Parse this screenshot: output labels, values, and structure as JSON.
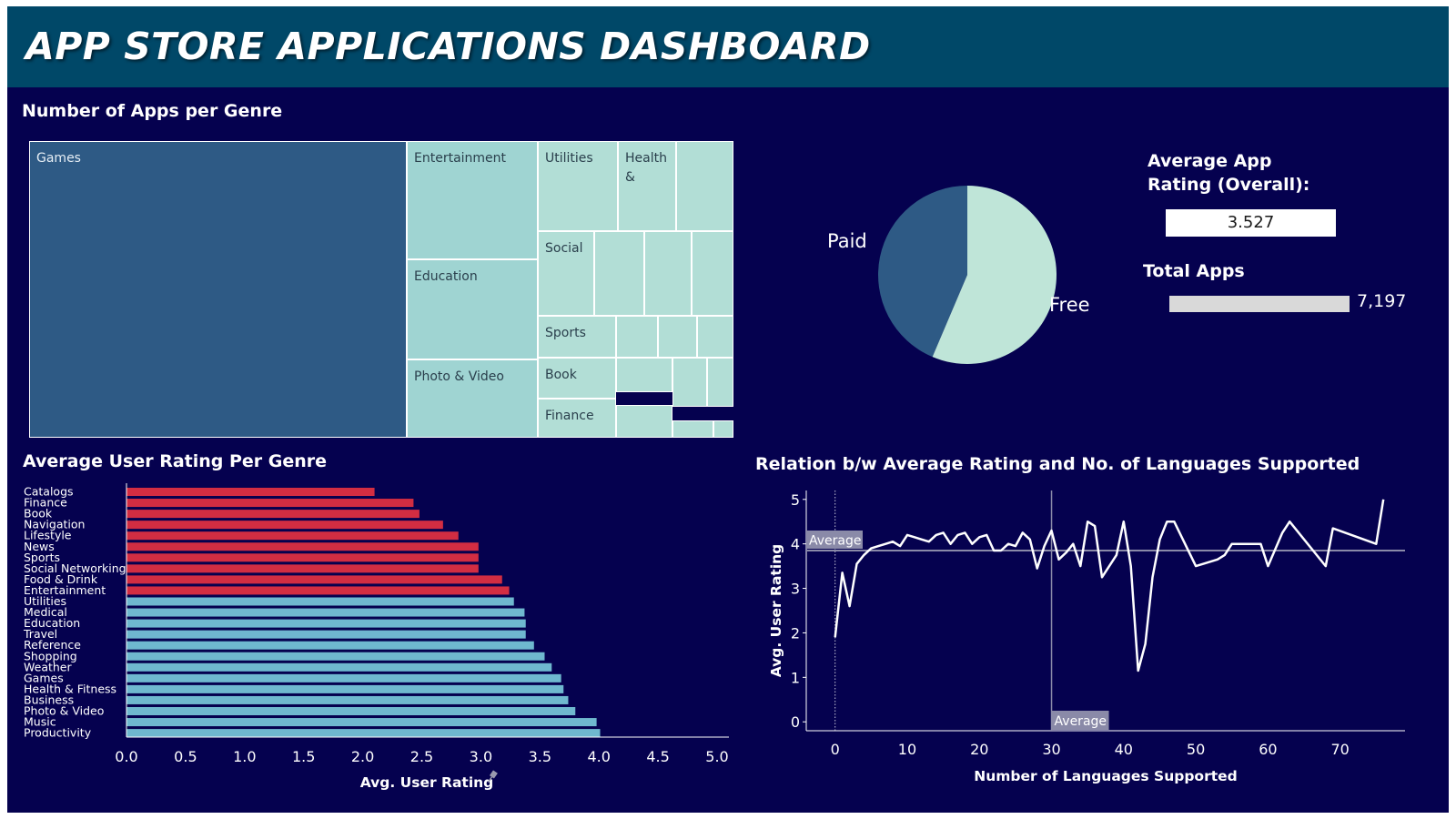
{
  "header": {
    "title": "APP STORE APPLICATIONS DASHBOARD"
  },
  "treemap": {
    "title": "Number of Apps per Genre",
    "color_large": "#2e5a85",
    "color_mid": "#9fd4d2",
    "color_small": "#b2ded6",
    "cells": [
      {
        "label": "Games",
        "color": "large"
      },
      {
        "label": "Entertainment",
        "color": "mid"
      },
      {
        "label": "Education",
        "color": "mid"
      },
      {
        "label": "Photo & Video",
        "color": "mid"
      },
      {
        "label": "Utilities",
        "color": "small"
      },
      {
        "label": "Health &",
        "color": "small"
      },
      {
        "label": "",
        "color": "small"
      },
      {
        "label": "Social",
        "color": "small"
      },
      {
        "label": "",
        "color": "small"
      },
      {
        "label": "",
        "color": "small"
      },
      {
        "label": "",
        "color": "small"
      },
      {
        "label": "Sports",
        "color": "small"
      },
      {
        "label": "",
        "color": "small"
      },
      {
        "label": "",
        "color": "small"
      },
      {
        "label": "",
        "color": "small"
      },
      {
        "label": "Book",
        "color": "small"
      },
      {
        "label": "",
        "color": "small"
      },
      {
        "label": "",
        "color": "small"
      },
      {
        "label": "",
        "color": "small"
      },
      {
        "label": "Finance",
        "color": "small"
      },
      {
        "label": "",
        "color": "small"
      },
      {
        "label": "",
        "color": "small"
      },
      {
        "label": "",
        "color": "small"
      }
    ]
  },
  "pie": {
    "paid_label": "Paid",
    "free_label": "Free",
    "paid_color": "#2e5a85",
    "free_color": "#bfe5d8"
  },
  "kpi": {
    "avg_rating_label_line1": "Average App",
    "avg_rating_label_line2": "Rating (Overall):",
    "avg_rating_value": "3.527",
    "total_apps_label": "Total Apps",
    "total_apps_value": "7,197"
  },
  "chart_data": [
    {
      "type": "pie",
      "categories": [
        "Paid",
        "Free"
      ],
      "values": [
        43.6,
        56.4
      ],
      "colors": [
        "#2e5a85",
        "#bfe5d8"
      ]
    },
    {
      "type": "bar",
      "orientation": "horizontal",
      "title": "Average User Rating Per Genre",
      "xlabel": "Avg. User Rating",
      "xlim": [
        0,
        5
      ],
      "xticks": [
        "0.0",
        "0.5",
        "1.0",
        "1.5",
        "2.0",
        "2.5",
        "3.0",
        "3.5",
        "4.0",
        "4.5",
        "5.0"
      ],
      "categories": [
        "Catalogs",
        "Finance",
        "Book",
        "Navigation",
        "Lifestyle",
        "News",
        "Sports",
        "Social Networking",
        "Food & Drink",
        "Entertainment",
        "Utilities",
        "Medical",
        "Education",
        "Travel",
        "Reference",
        "Shopping",
        "Weather",
        "Games",
        "Health & Fitness",
        "Business",
        "Photo & Video",
        "Music",
        "Productivity"
      ],
      "values": [
        2.1,
        2.43,
        2.48,
        2.68,
        2.81,
        2.98,
        2.98,
        2.98,
        3.18,
        3.24,
        3.28,
        3.37,
        3.38,
        3.38,
        3.45,
        3.54,
        3.6,
        3.68,
        3.7,
        3.74,
        3.8,
        3.98,
        4.01
      ],
      "colors": {
        "below": "#d22d42",
        "above": "#6fb8cf"
      },
      "below_count": 10
    },
    {
      "type": "line",
      "title": "Relation b/w Average Rating and No. of Languages Supported",
      "xlabel": "Number of Languages Supported",
      "ylabel": "Avg. User Rating",
      "xlim": [
        -4,
        79
      ],
      "ylim": [
        -0.2,
        5.2
      ],
      "xticks": [
        0,
        10,
        20,
        30,
        40,
        50,
        60,
        70
      ],
      "yticks": [
        0,
        1,
        2,
        3,
        4,
        5
      ],
      "avg_y": 3.85,
      "avg_x": 30,
      "avg_label": "Average",
      "x": [
        0,
        1,
        2,
        3,
        4,
        5,
        6,
        7,
        8,
        9,
        10,
        11,
        12,
        13,
        14,
        15,
        16,
        17,
        18,
        19,
        20,
        21,
        22,
        23,
        24,
        25,
        26,
        27,
        28,
        29,
        30,
        31,
        32,
        33,
        34,
        35,
        36,
        37,
        38,
        39,
        40,
        41,
        42,
        43,
        44,
        45,
        46,
        47,
        50,
        51,
        53,
        54,
        55,
        56,
        57,
        58,
        59,
        60,
        62,
        63,
        68,
        69,
        75,
        76
      ],
      "y": [
        1.9,
        3.35,
        2.6,
        3.55,
        3.75,
        3.9,
        3.95,
        4.0,
        4.05,
        3.95,
        4.2,
        4.15,
        4.1,
        4.05,
        4.2,
        4.25,
        4.0,
        4.2,
        4.25,
        4.0,
        4.15,
        4.2,
        3.85,
        3.85,
        4.0,
        3.95,
        4.25,
        4.1,
        3.45,
        3.95,
        4.3,
        3.65,
        3.8,
        4.0,
        3.5,
        4.5,
        4.4,
        3.25,
        3.5,
        3.75,
        4.5,
        3.5,
        1.15,
        1.75,
        3.25,
        4.1,
        4.5,
        4.5,
        3.5,
        3.55,
        3.65,
        3.75,
        4.0,
        4.0,
        4.0,
        4.0,
        4.0,
        3.5,
        4.25,
        4.5,
        3.5,
        4.35,
        4.0,
        5.0
      ],
      "line_color": "#ffffff"
    }
  ]
}
